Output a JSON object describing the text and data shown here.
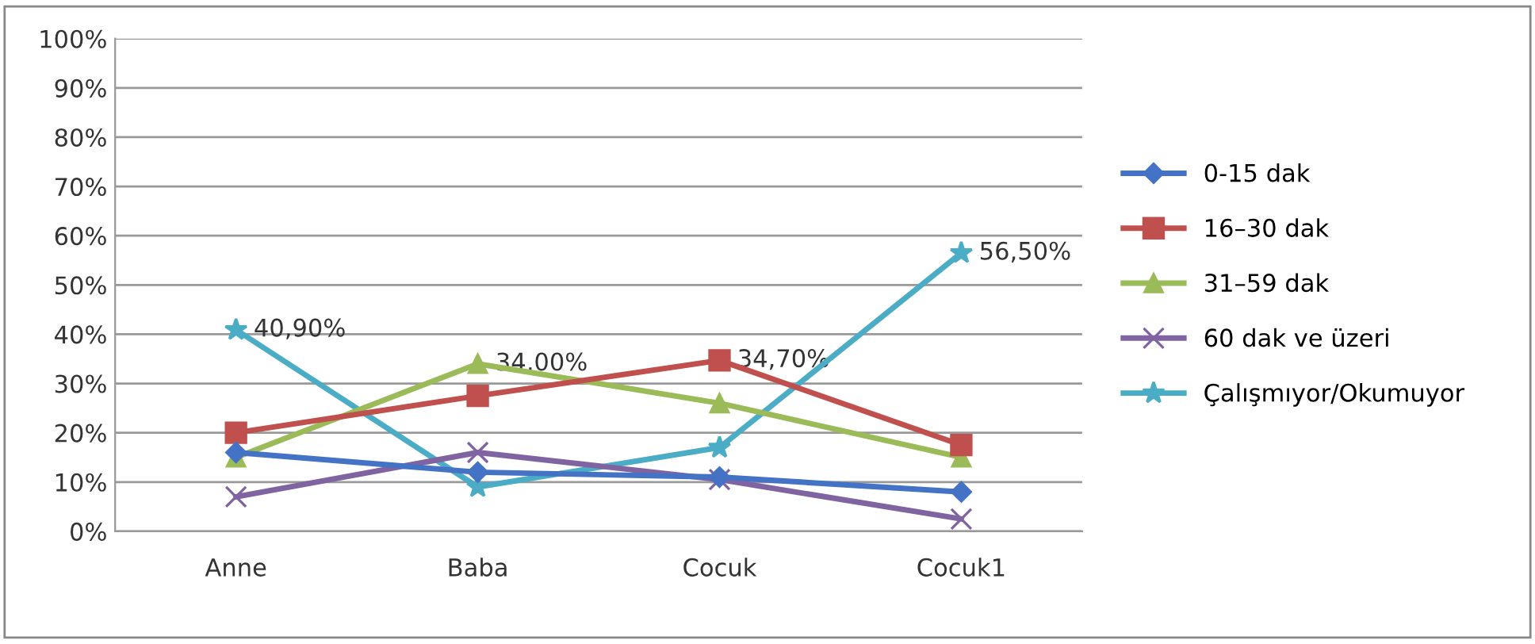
{
  "chart_data": {
    "type": "line",
    "categories": [
      "Anne",
      "Baba",
      "Cocuk",
      "Cocuk1"
    ],
    "series": [
      {
        "name": "0-15 dak",
        "color": "#4472c4",
        "marker": "diamond",
        "values": [
          16,
          12,
          11,
          8
        ]
      },
      {
        "name": "16–30 dak",
        "color": "#c0504d",
        "marker": "square",
        "values": [
          20,
          27.5,
          34.7,
          17.5
        ],
        "value_labels": [
          null,
          null,
          "34,70%",
          null
        ]
      },
      {
        "name": "31–59 dak",
        "color": "#9bbb59",
        "marker": "triangle",
        "values": [
          15,
          34,
          26,
          15
        ],
        "value_labels": [
          null,
          "34,00%",
          null,
          null
        ]
      },
      {
        "name": "60 dak ve üzeri",
        "color": "#8064a2",
        "marker": "cross",
        "values": [
          7,
          16,
          10.5,
          2.5
        ]
      },
      {
        "name": "Çalışmıyor/Okumuyor",
        "color": "#4bacc6",
        "marker": "star",
        "values": [
          40.9,
          9,
          17,
          56.5
        ],
        "value_labels": [
          "40,90%",
          null,
          null,
          "56,50%"
        ]
      }
    ],
    "ylim": [
      0,
      100
    ],
    "yticks": [
      {
        "value": 0,
        "label": "0%"
      },
      {
        "value": 10,
        "label": "10%"
      },
      {
        "value": 20,
        "label": "20%"
      },
      {
        "value": 30,
        "label": "30%"
      },
      {
        "value": 40,
        "label": "40%"
      },
      {
        "value": 50,
        "label": "50%"
      },
      {
        "value": 60,
        "label": "60%"
      },
      {
        "value": 70,
        "label": "70%"
      },
      {
        "value": 80,
        "label": "80%"
      },
      {
        "value": 90,
        "label": "90%"
      },
      {
        "value": 100,
        "label": "100%"
      }
    ],
    "grid": "y",
    "legend": "right"
  }
}
